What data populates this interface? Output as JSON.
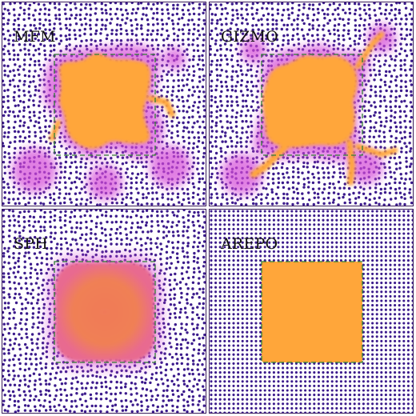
{
  "panels": [
    {
      "key": "mfm",
      "label": "MFM",
      "style": "blob"
    },
    {
      "key": "gizmo",
      "label": "GIZMO",
      "style": "blob-tendrils"
    },
    {
      "key": "sph",
      "label": "SPH",
      "style": "smooth"
    },
    {
      "key": "arepo",
      "label": "AREPO",
      "style": "sharp"
    }
  ],
  "colors": {
    "particle": "#3b1a8c",
    "halo": "#d44ad8",
    "core": "#ffa63a",
    "sph_core": "#f08055",
    "box_dash": "#2e7d32",
    "background": "#ffffff"
  }
}
